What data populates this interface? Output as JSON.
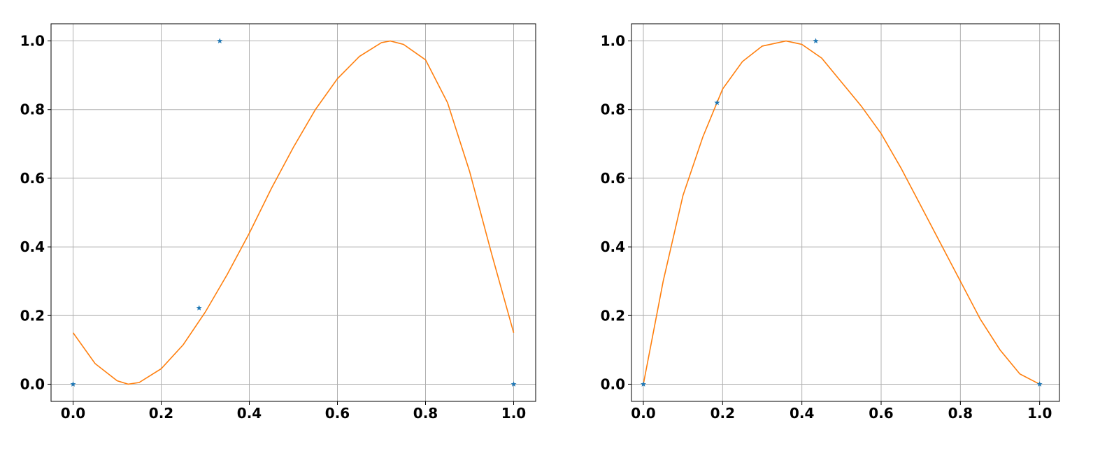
{
  "colors": {
    "points": "#1f77b4",
    "curve": "#ff7f0e",
    "grid": "#b0b0b0",
    "background": "#ffffff"
  },
  "chart_data": [
    {
      "type": "line",
      "title": "",
      "xlabel": "",
      "ylabel": "",
      "xlim": [
        -0.05,
        1.05
      ],
      "ylim": [
        -0.05,
        1.05
      ],
      "grid": true,
      "xticks": [
        0.0,
        0.2,
        0.4,
        0.6,
        0.8,
        1.0
      ],
      "xtick_labels": [
        "0.0",
        "0.2",
        "0.4",
        "0.6",
        "0.8",
        "1.0"
      ],
      "yticks": [
        0.0,
        0.2,
        0.4,
        0.6,
        0.8,
        1.0
      ],
      "ytick_labels": [
        "0.0",
        "0.2",
        "0.4",
        "0.6",
        "0.8",
        "1.0"
      ],
      "series": [
        {
          "style": "markers-star",
          "color": "#1f77b4",
          "x": [
            0.0,
            0.286,
            0.333,
            1.0
          ],
          "y": [
            0.0,
            0.222,
            1.0,
            0.0
          ]
        },
        {
          "style": "line",
          "color": "#ff7f0e",
          "x": [
            0.0,
            0.05,
            0.1,
            0.125,
            0.15,
            0.2,
            0.25,
            0.3,
            0.35,
            0.4,
            0.45,
            0.5,
            0.55,
            0.6,
            0.65,
            0.7,
            0.72,
            0.75,
            0.8,
            0.85,
            0.9,
            0.95,
            1.0
          ],
          "y": [
            0.15,
            0.06,
            0.01,
            0.0,
            0.005,
            0.045,
            0.115,
            0.21,
            0.32,
            0.44,
            0.57,
            0.69,
            0.8,
            0.89,
            0.955,
            0.995,
            1.0,
            0.99,
            0.945,
            0.82,
            0.62,
            0.38,
            0.15
          ]
        }
      ]
    },
    {
      "type": "line",
      "title": "",
      "xlabel": "",
      "ylabel": "",
      "xlim": [
        -0.03,
        1.05
      ],
      "ylim": [
        -0.05,
        1.05
      ],
      "grid": true,
      "xticks": [
        0.0,
        0.2,
        0.4,
        0.6,
        0.8,
        1.0
      ],
      "xtick_labels": [
        "0.0",
        "0.2",
        "0.4",
        "0.6",
        "0.8",
        "1.0"
      ],
      "yticks": [
        0.0,
        0.2,
        0.4,
        0.6,
        0.8,
        1.0
      ],
      "ytick_labels": [
        "0.0",
        "0.2",
        "0.4",
        "0.6",
        "0.8",
        "1.0"
      ],
      "series": [
        {
          "style": "markers-star",
          "color": "#1f77b4",
          "x": [
            0.0,
            0.186,
            0.435,
            1.0
          ],
          "y": [
            0.0,
            0.82,
            1.0,
            0.0
          ]
        },
        {
          "style": "line",
          "color": "#ff7f0e",
          "x": [
            0.0,
            0.05,
            0.1,
            0.15,
            0.2,
            0.25,
            0.3,
            0.36,
            0.4,
            0.45,
            0.5,
            0.55,
            0.6,
            0.65,
            0.7,
            0.75,
            0.8,
            0.85,
            0.9,
            0.95,
            1.0
          ],
          "y": [
            0.0,
            0.3,
            0.55,
            0.72,
            0.86,
            0.94,
            0.985,
            1.0,
            0.99,
            0.95,
            0.88,
            0.81,
            0.73,
            0.63,
            0.52,
            0.41,
            0.3,
            0.19,
            0.1,
            0.03,
            0.0
          ]
        }
      ]
    }
  ]
}
